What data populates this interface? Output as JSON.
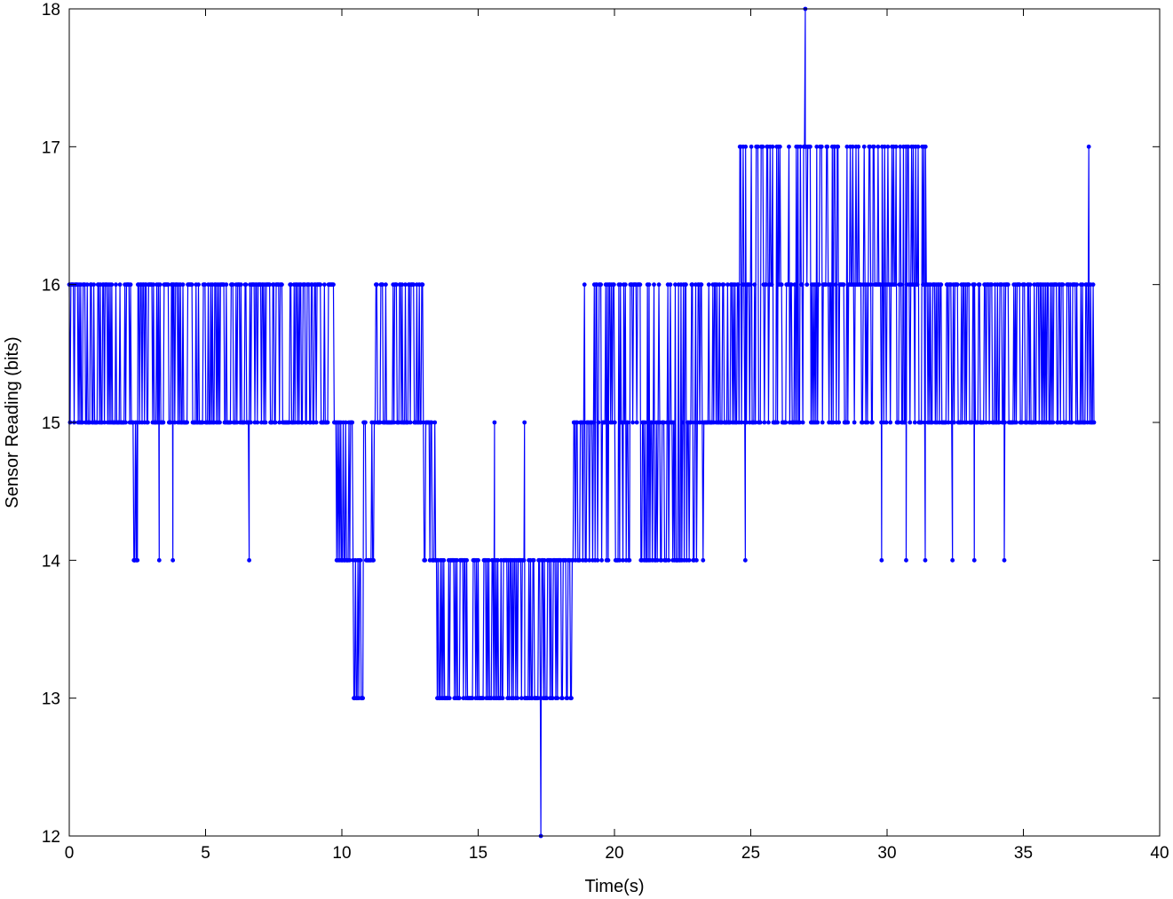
{
  "chart_data": {
    "type": "line",
    "title": "",
    "xlabel": "Time(s)",
    "ylabel": "Sensor Reading (bits)",
    "xlim": [
      0,
      40
    ],
    "ylim": [
      12,
      18
    ],
    "xticks": [
      0,
      5,
      10,
      15,
      20,
      25,
      30,
      35,
      40
    ],
    "yticks": [
      12,
      13,
      14,
      15,
      16,
      17,
      18
    ],
    "grid": false,
    "legend": "none",
    "colors": {
      "series": "#0000ff",
      "axes": "#000000",
      "background": "#ffffff"
    },
    "series": [
      {
        "marker": "dot",
        "x_range": [
          0,
          37.6
        ],
        "segments": [
          {
            "x": [
              0.0,
              2.3
            ],
            "levels": [
              15,
              16
            ]
          },
          {
            "x": [
              2.3,
              2.5
            ],
            "levels": [
              14,
              15
            ]
          },
          {
            "x": [
              2.5,
              7.3
            ],
            "levels": [
              15,
              16
            ]
          },
          {
            "x": [
              7.3,
              9.7
            ],
            "levels": [
              15,
              16
            ]
          },
          {
            "x": [
              9.7,
              10.4
            ],
            "levels": [
              14,
              15
            ]
          },
          {
            "x": [
              10.4,
              10.8
            ],
            "levels": [
              13,
              14
            ]
          },
          {
            "x": [
              10.8,
              11.2
            ],
            "levels": [
              14,
              15
            ]
          },
          {
            "x": [
              11.2,
              13.0
            ],
            "levels": [
              15,
              16
            ]
          },
          {
            "x": [
              13.0,
              13.5
            ],
            "levels": [
              14,
              15
            ]
          },
          {
            "x": [
              13.5,
              14.6
            ],
            "levels": [
              13,
              14
            ]
          },
          {
            "x": [
              14.6,
              15.6
            ],
            "levels": [
              13,
              14
            ]
          },
          {
            "x": [
              15.6,
              17.4
            ],
            "levels": [
              13,
              14
            ]
          },
          {
            "x": [
              17.4,
              18.5
            ],
            "levels": [
              13,
              14
            ]
          },
          {
            "x": [
              18.5,
              18.9
            ],
            "levels": [
              14,
              15
            ]
          },
          {
            "x": [
              18.9,
              23.3
            ],
            "levels": [
              14,
              15,
              16
            ]
          },
          {
            "x": [
              23.3,
              24.5
            ],
            "levels": [
              15,
              16
            ]
          },
          {
            "x": [
              24.5,
              27.6
            ],
            "levels": [
              15,
              16,
              17
            ]
          },
          {
            "x": [
              27.6,
              30.3
            ],
            "levels": [
              15,
              16,
              17
            ]
          },
          {
            "x": [
              30.3,
              31.7
            ],
            "levels": [
              15,
              16,
              17
            ]
          },
          {
            "x": [
              31.7,
              37.6
            ],
            "levels": [
              15,
              16
            ]
          }
        ],
        "spikes": [
          {
            "x": 2.4,
            "y": 14
          },
          {
            "x": 2.5,
            "y": 14
          },
          {
            "x": 3.3,
            "y": 14
          },
          {
            "x": 3.8,
            "y": 14
          },
          {
            "x": 6.6,
            "y": 14
          },
          {
            "x": 15.6,
            "y": 15
          },
          {
            "x": 16.7,
            "y": 15
          },
          {
            "x": 17.3,
            "y": 12
          },
          {
            "x": 24.8,
            "y": 14
          },
          {
            "x": 27.0,
            "y": 18
          },
          {
            "x": 29.8,
            "y": 14
          },
          {
            "x": 30.7,
            "y": 14
          },
          {
            "x": 31.4,
            "y": 14
          },
          {
            "x": 32.4,
            "y": 14
          },
          {
            "x": 33.2,
            "y": 14
          },
          {
            "x": 34.3,
            "y": 14
          },
          {
            "x": 37.4,
            "y": 17
          }
        ]
      }
    ]
  }
}
